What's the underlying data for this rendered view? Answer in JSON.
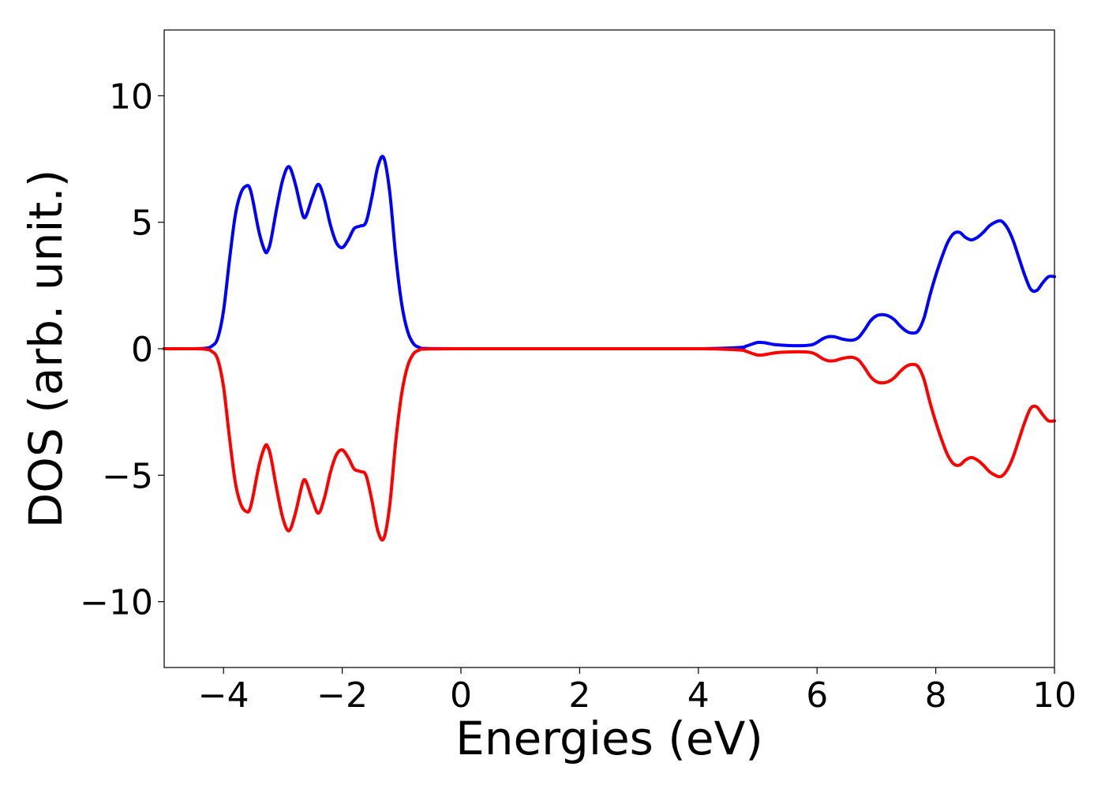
{
  "chart_data": {
    "type": "line",
    "title": "",
    "xlabel": "Energies (eV)",
    "ylabel": "DOS (arb. unit.)",
    "xlim": [
      -5,
      10
    ],
    "ylim": [
      -12.6,
      12.6
    ],
    "xticks": [
      -4,
      -2,
      0,
      2,
      4,
      6,
      8,
      10
    ],
    "xtick_labels": [
      "−4",
      "−2",
      "0",
      "2",
      "4",
      "6",
      "8",
      "10"
    ],
    "yticks": [
      -10,
      -5,
      0,
      5,
      10
    ],
    "ytick_labels": [
      "−10",
      "−5",
      "0",
      "5",
      "10"
    ],
    "grid": false,
    "legend": "none",
    "series": [
      {
        "color": "#0000ff",
        "x": [
          -5.0,
          -4.5,
          -4.3,
          -4.2,
          -4.1,
          -4.0,
          -3.9,
          -3.8,
          -3.7,
          -3.6,
          -3.55,
          -3.5,
          -3.4,
          -3.3,
          -3.25,
          -3.2,
          -3.1,
          -3.0,
          -2.9,
          -2.8,
          -2.7,
          -2.65,
          -2.6,
          -2.5,
          -2.4,
          -2.3,
          -2.2,
          -2.1,
          -2.0,
          -1.9,
          -1.8,
          -1.7,
          -1.6,
          -1.5,
          -1.4,
          -1.3,
          -1.2,
          -1.1,
          -1.0,
          -0.9,
          -0.8,
          -0.7,
          -0.6,
          0.0,
          2.0,
          4.0,
          4.7,
          4.8,
          4.9,
          5.0,
          5.1,
          5.2,
          5.3,
          5.5,
          5.7,
          5.9,
          6.0,
          6.1,
          6.2,
          6.3,
          6.4,
          6.5,
          6.6,
          6.7,
          6.8,
          6.9,
          7.0,
          7.1,
          7.2,
          7.3,
          7.4,
          7.5,
          7.6,
          7.7,
          7.8,
          7.9,
          8.0,
          8.1,
          8.2,
          8.3,
          8.4,
          8.5,
          8.6,
          8.7,
          8.8,
          8.9,
          9.0,
          9.1,
          9.2,
          9.3,
          9.4,
          9.5,
          9.6,
          9.7,
          9.8,
          9.9,
          10.0
        ],
        "y": [
          0.0,
          0.0,
          0.02,
          0.1,
          0.4,
          1.5,
          3.5,
          5.3,
          6.2,
          6.45,
          6.3,
          5.8,
          4.6,
          3.85,
          3.9,
          4.3,
          5.6,
          6.7,
          7.2,
          6.6,
          5.6,
          5.2,
          5.3,
          6.0,
          6.5,
          5.9,
          4.9,
          4.2,
          4.0,
          4.3,
          4.75,
          4.85,
          5.0,
          6.0,
          7.2,
          7.55,
          6.2,
          3.7,
          1.8,
          0.7,
          0.2,
          0.05,
          0.01,
          0.0,
          0.0,
          0.0,
          0.05,
          0.1,
          0.18,
          0.25,
          0.24,
          0.2,
          0.16,
          0.13,
          0.12,
          0.15,
          0.25,
          0.4,
          0.48,
          0.47,
          0.4,
          0.35,
          0.34,
          0.45,
          0.75,
          1.1,
          1.3,
          1.35,
          1.3,
          1.15,
          0.9,
          0.7,
          0.62,
          0.7,
          1.2,
          2.1,
          2.9,
          3.6,
          4.2,
          4.55,
          4.6,
          4.4,
          4.3,
          4.4,
          4.6,
          4.85,
          5.0,
          5.05,
          4.8,
          4.3,
          3.6,
          2.9,
          2.35,
          2.3,
          2.6,
          2.85,
          2.85
        ]
      },
      {
        "color": "#ff0000",
        "x": [
          -5.0,
          -4.5,
          -4.3,
          -4.2,
          -4.1,
          -4.0,
          -3.9,
          -3.8,
          -3.7,
          -3.6,
          -3.55,
          -3.5,
          -3.4,
          -3.3,
          -3.25,
          -3.2,
          -3.1,
          -3.0,
          -2.9,
          -2.8,
          -2.7,
          -2.65,
          -2.6,
          -2.5,
          -2.4,
          -2.3,
          -2.2,
          -2.1,
          -2.0,
          -1.9,
          -1.8,
          -1.7,
          -1.6,
          -1.5,
          -1.4,
          -1.3,
          -1.2,
          -1.1,
          -1.0,
          -0.9,
          -0.8,
          -0.7,
          -0.6,
          0.0,
          2.0,
          4.0,
          4.7,
          4.8,
          4.9,
          5.0,
          5.1,
          5.2,
          5.3,
          5.5,
          5.7,
          5.9,
          6.0,
          6.1,
          6.2,
          6.3,
          6.4,
          6.5,
          6.6,
          6.7,
          6.8,
          6.9,
          7.0,
          7.1,
          7.2,
          7.3,
          7.4,
          7.5,
          7.6,
          7.7,
          7.8,
          7.9,
          8.0,
          8.1,
          8.2,
          8.3,
          8.4,
          8.5,
          8.6,
          8.7,
          8.8,
          8.9,
          9.0,
          9.1,
          9.2,
          9.3,
          9.4,
          9.5,
          9.6,
          9.7,
          9.8,
          9.9,
          10.0
        ],
        "y": [
          0.0,
          0.0,
          -0.02,
          -0.1,
          -0.4,
          -1.5,
          -3.5,
          -5.3,
          -6.2,
          -6.45,
          -6.3,
          -5.8,
          -4.6,
          -3.85,
          -3.9,
          -4.3,
          -5.6,
          -6.7,
          -7.2,
          -6.6,
          -5.6,
          -5.2,
          -5.3,
          -6.0,
          -6.5,
          -5.9,
          -4.9,
          -4.2,
          -4.0,
          -4.3,
          -4.75,
          -4.85,
          -5.0,
          -6.0,
          -7.2,
          -7.5,
          -6.2,
          -3.7,
          -1.8,
          -0.7,
          -0.2,
          -0.05,
          -0.01,
          0.0,
          0.0,
          0.0,
          -0.05,
          -0.1,
          -0.18,
          -0.25,
          -0.24,
          -0.2,
          -0.16,
          -0.13,
          -0.12,
          -0.15,
          -0.25,
          -0.4,
          -0.48,
          -0.47,
          -0.4,
          -0.35,
          -0.34,
          -0.45,
          -0.75,
          -1.1,
          -1.3,
          -1.35,
          -1.3,
          -1.15,
          -0.9,
          -0.7,
          -0.62,
          -0.7,
          -1.2,
          -2.1,
          -2.9,
          -3.6,
          -4.2,
          -4.55,
          -4.6,
          -4.4,
          -4.3,
          -4.4,
          -4.6,
          -4.85,
          -5.0,
          -5.05,
          -4.8,
          -4.3,
          -3.6,
          -2.9,
          -2.35,
          -2.3,
          -2.6,
          -2.85,
          -2.85
        ]
      }
    ]
  }
}
